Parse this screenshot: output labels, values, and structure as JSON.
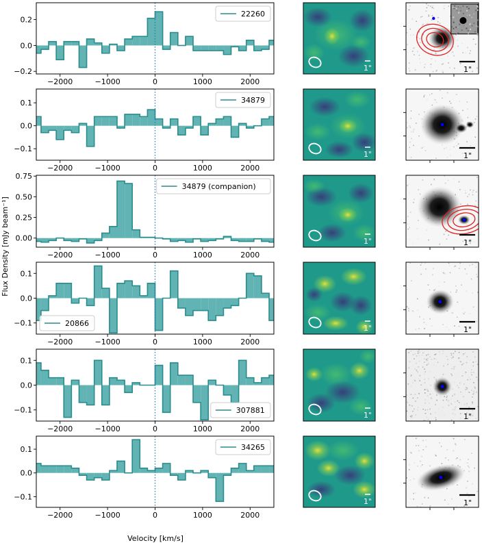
{
  "figure": {
    "ylabel": "Flux Density [mJy beam⁻¹]",
    "xlabel": "Velocity [km/s]",
    "beam_scale_label": "1\"",
    "image_scale_label": "1\""
  },
  "colors": {
    "fill": "#62b4b4",
    "line": "#2a8c8c",
    "zero_line": "#1f77b4",
    "map_low": "#3b2f78",
    "map_mid": "#1f9a8a",
    "map_high": "#f4e432",
    "contour": "#e02020",
    "marker": "#0000ff"
  },
  "chart_data": [
    {
      "type": "step",
      "legend": "22260",
      "legend_position": "upper right",
      "xlim": [
        -2500,
        2500
      ],
      "ylim": [
        -0.22,
        0.33
      ],
      "yticks": [
        -0.2,
        0.0,
        0.2
      ],
      "ytick_labels": [
        "−0.2",
        "0.0",
        "0.2"
      ],
      "xticks": [
        -2000,
        -1000,
        0,
        1000,
        2000
      ],
      "xtick_labels": [
        "−2000",
        "−1000",
        "0",
        "1000",
        "2000"
      ],
      "bin_width": 160,
      "x": [
        -2480,
        -2320,
        -2160,
        -2000,
        -1840,
        -1680,
        -1520,
        -1360,
        -1200,
        -1040,
        -880,
        -720,
        -560,
        -400,
        -240,
        -80,
        80,
        240,
        400,
        560,
        720,
        880,
        1040,
        1200,
        1360,
        1520,
        1680,
        1840,
        2000,
        2160,
        2320,
        2480
      ],
      "values": [
        -0.06,
        -0.03,
        0.03,
        -0.11,
        0.03,
        0.03,
        -0.17,
        0.05,
        0.02,
        -0.06,
        0.01,
        -0.04,
        0.05,
        0.07,
        0.07,
        0.21,
        0.26,
        -0.03,
        0.1,
        0.0,
        0.07,
        -0.04,
        -0.04,
        -0.04,
        -0.04,
        -0.07,
        -0.01,
        -0.04,
        0.04,
        -0.04,
        -0.03,
        0.04
      ]
    },
    {
      "type": "step",
      "legend": "34879",
      "legend_position": "upper right",
      "xlim": [
        -2500,
        2500
      ],
      "ylim": [
        -0.15,
        0.16
      ],
      "yticks": [
        -0.1,
        0.0,
        0.1
      ],
      "ytick_labels": [
        "−0.1",
        "0.0",
        "0.1"
      ],
      "xticks": [
        -2000,
        -1000,
        0,
        1000,
        2000
      ],
      "xtick_labels": [
        "−2000",
        "−1000",
        "0",
        "1000",
        "2000"
      ],
      "bin_width": 160,
      "x": [
        -2480,
        -2320,
        -2160,
        -2000,
        -1840,
        -1680,
        -1520,
        -1360,
        -1200,
        -1040,
        -880,
        -720,
        -560,
        -400,
        -240,
        -80,
        80,
        240,
        400,
        560,
        720,
        880,
        1040,
        1200,
        1360,
        1520,
        1680,
        1840,
        2000,
        2160,
        2320,
        2480
      ],
      "values": [
        0.04,
        -0.03,
        -0.02,
        -0.06,
        -0.02,
        -0.03,
        0.01,
        -0.09,
        0.04,
        0.04,
        0.04,
        -0.01,
        0.05,
        0.05,
        0.04,
        0.07,
        0.03,
        -0.01,
        0.03,
        -0.04,
        -0.01,
        0.04,
        -0.04,
        0.01,
        0.03,
        0.04,
        -0.05,
        0.01,
        -0.01,
        0.0,
        0.03,
        0.04
      ]
    },
    {
      "type": "step",
      "legend": "34879 (companion)",
      "legend_position": "upper right",
      "xlim": [
        -2500,
        2500
      ],
      "ylim": [
        -0.11,
        0.76
      ],
      "yticks": [
        0.0,
        0.25,
        0.5,
        0.75
      ],
      "ytick_labels": [
        "0.00",
        "0.25",
        "0.50",
        "0.75"
      ],
      "xticks": [
        -2000,
        -1000,
        0,
        1000,
        2000
      ],
      "xtick_labels": [
        "−2000",
        "−1000",
        "0",
        "1000",
        "2000"
      ],
      "bin_width": 160,
      "x": [
        -2480,
        -2320,
        -2160,
        -2000,
        -1840,
        -1680,
        -1520,
        -1360,
        -1200,
        -1040,
        -880,
        -720,
        -560,
        -400,
        -240,
        -80,
        80,
        240,
        400,
        560,
        720,
        880,
        1040,
        1200,
        1360,
        1520,
        1680,
        1840,
        2000,
        2160,
        2320,
        2480
      ],
      "values": [
        -0.04,
        -0.05,
        -0.03,
        0.0,
        -0.03,
        -0.04,
        -0.01,
        -0.06,
        -0.03,
        0.06,
        0.14,
        0.69,
        0.66,
        0.1,
        0.01,
        0.01,
        0.0,
        -0.01,
        -0.04,
        -0.03,
        -0.05,
        -0.01,
        -0.04,
        -0.03,
        -0.01,
        0.02,
        -0.03,
        -0.04,
        -0.04,
        -0.01,
        -0.04,
        -0.05
      ]
    },
    {
      "type": "step",
      "legend": "20866",
      "legend_position": "lower left",
      "xlim": [
        -2500,
        2500
      ],
      "ylim": [
        -0.145,
        0.145
      ],
      "yticks": [
        -0.1,
        0.0,
        0.1
      ],
      "ytick_labels": [
        "−0.1",
        "0.0",
        "0.1"
      ],
      "xticks": [
        -2000,
        -1000,
        0,
        1000,
        2000
      ],
      "xtick_labels": [
        "−2000",
        "−1000",
        "0",
        "1000",
        "2000"
      ],
      "bin_width": 160,
      "x": [
        -2480,
        -2320,
        -2160,
        -2000,
        -1840,
        -1680,
        -1520,
        -1360,
        -1200,
        -1040,
        -880,
        -720,
        -560,
        -400,
        -240,
        -80,
        80,
        240,
        400,
        560,
        720,
        880,
        1040,
        1200,
        1360,
        1520,
        1680,
        1840,
        2000,
        2160,
        2320,
        2480
      ],
      "values": [
        -0.09,
        -0.05,
        0.01,
        0.06,
        0.06,
        -0.02,
        0.0,
        -0.03,
        0.13,
        0.04,
        -0.14,
        0.06,
        0.07,
        0.05,
        0.01,
        0.06,
        -0.13,
        0.0,
        0.11,
        -0.04,
        -0.07,
        -0.05,
        -0.05,
        -0.09,
        -0.07,
        -0.04,
        -0.03,
        0.0,
        0.1,
        0.09,
        0.02,
        -0.09
      ]
    },
    {
      "type": "step",
      "legend": "307881",
      "legend_position": "lower right",
      "xlim": [
        -2500,
        2500
      ],
      "ylim": [
        -0.145,
        0.145
      ],
      "yticks": [
        -0.1,
        0.0,
        0.1
      ],
      "ytick_labels": [
        "−0.1",
        "0.0",
        "0.1"
      ],
      "xticks": [
        -2000,
        -1000,
        0,
        1000,
        2000
      ],
      "xtick_labels": [
        "−2000",
        "−1000",
        "0",
        "1000",
        "2000"
      ],
      "bin_width": 160,
      "x": [
        -2480,
        -2320,
        -2160,
        -2000,
        -1840,
        -1680,
        -1520,
        -1360,
        -1200,
        -1040,
        -880,
        -720,
        -560,
        -400,
        -240,
        -80,
        80,
        240,
        400,
        560,
        720,
        880,
        1040,
        1200,
        1360,
        1520,
        1680,
        1840,
        2000,
        2160,
        2320,
        2480
      ],
      "values": [
        0.09,
        0.06,
        0.03,
        0.03,
        -0.13,
        0.02,
        -0.07,
        -0.08,
        0.1,
        -0.08,
        0.03,
        0.02,
        -0.03,
        0.01,
        0.0,
        0.0,
        0.08,
        -0.11,
        0.09,
        0.04,
        0.04,
        -0.07,
        -0.14,
        0.02,
        0.0,
        -0.04,
        -0.07,
        0.1,
        0.03,
        0.01,
        0.03,
        0.04
      ]
    },
    {
      "type": "step",
      "legend": "34265",
      "legend_position": "upper right",
      "xlim": [
        -2500,
        2500
      ],
      "ylim": [
        -0.145,
        0.155
      ],
      "yticks": [
        -0.1,
        0.0,
        0.1
      ],
      "ytick_labels": [
        "−0.1",
        "0.0",
        "0.1"
      ],
      "xticks": [
        -2000,
        -1000,
        0,
        1000,
        2000
      ],
      "xtick_labels": [
        "−2000",
        "−1000",
        "0",
        "1000",
        "2000"
      ],
      "bin_width": 160,
      "x": [
        -2480,
        -2320,
        -2160,
        -2000,
        -1840,
        -1680,
        -1520,
        -1360,
        -1200,
        -1040,
        -880,
        -720,
        -560,
        -400,
        -240,
        -80,
        80,
        240,
        400,
        560,
        720,
        880,
        1040,
        1200,
        1360,
        1520,
        1680,
        1840,
        2000,
        2160,
        2320,
        2480
      ],
      "values": [
        0.04,
        0.03,
        0.03,
        0.03,
        0.03,
        0.02,
        -0.01,
        -0.03,
        -0.02,
        -0.03,
        0.01,
        0.05,
        0.0,
        0.14,
        0.02,
        0.01,
        0.02,
        0.04,
        -0.01,
        -0.03,
        0.01,
        0.0,
        0.01,
        -0.02,
        -0.12,
        -0.01,
        0.02,
        0.04,
        0.01,
        0.03,
        0.03,
        0.03
      ]
    }
  ]
}
